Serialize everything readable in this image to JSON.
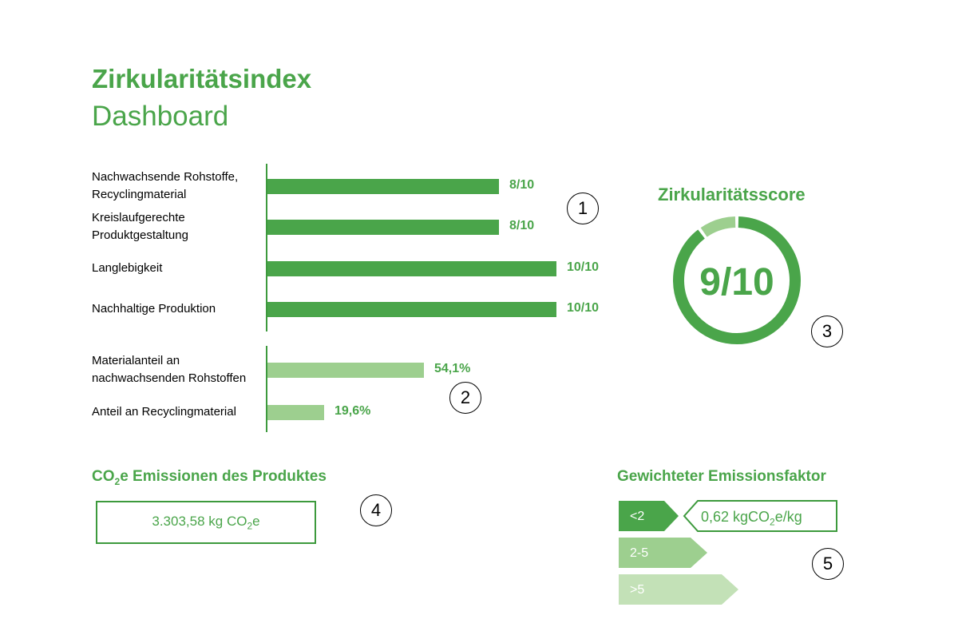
{
  "header": {
    "title": "Zirkularitätsindex",
    "subtitle": "Dashboard"
  },
  "markers": [
    "1",
    "2",
    "3",
    "4",
    "5"
  ],
  "colors": {
    "dark_green": "#4aa54a",
    "medium_green": "#9dcf8f",
    "light_green": "#c3e1b7"
  },
  "chart_data": [
    {
      "type": "bar",
      "orientation": "horizontal",
      "categories": [
        "Nachwachsende Rohstoffe,\nRecyclingmaterial",
        "Kreislaufgerechte\nProduktgestaltung",
        "Langlebigkeit",
        "Nachhaltige Produktion"
      ],
      "values": [
        8,
        8,
        10,
        10
      ],
      "labels": [
        "8/10",
        "8/10",
        "10/10",
        "10/10"
      ],
      "xlim": [
        0,
        10
      ]
    },
    {
      "type": "bar",
      "orientation": "horizontal",
      "categories": [
        "Materialanteil an\nnachwachsenden Rohstoffen",
        "Anteil an Recyclingmaterial"
      ],
      "values": [
        54.1,
        19.6
      ],
      "labels": [
        "54,1%",
        "19,6%"
      ],
      "xlim": [
        0,
        100
      ]
    },
    {
      "type": "pie",
      "title": "Zirkularitätsscore",
      "value": 9,
      "max": 10,
      "label": "9/10"
    }
  ],
  "emissions": {
    "title_prefix": "CO",
    "title_sub": "2",
    "title_suffix": "e Emissionen des Produktes",
    "value_prefix": "3.303,58 kg CO",
    "value_sub": "2",
    "value_suffix": "e"
  },
  "factor": {
    "title": "Gewichteter Emissionsfaktor",
    "categories": [
      "<2",
      "2-5",
      ">5"
    ],
    "value_prefix": "0,62 kgCO",
    "value_sub": "2",
    "value_suffix": "e/kg"
  }
}
